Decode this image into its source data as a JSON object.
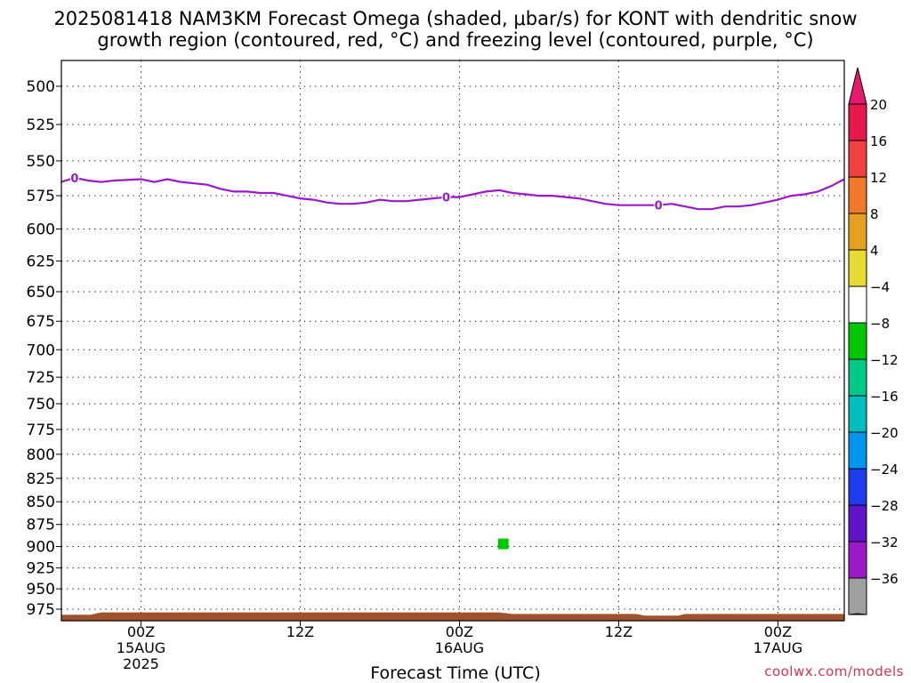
{
  "title_line1": "2025081418 NAM3KM Forecast Omega (shaded, μbar/s) for KONT with dendritic snow",
  "title_line2": "growth region (contoured, red, °C) and freezing level (contoured, purple, °C)",
  "x_axis_title": "Forecast Time (UTC)",
  "credit": "coolwx.com/models",
  "chart_data": {
    "type": "time-height",
    "title": "2025081418 NAM3KM Forecast Omega (shaded, μbar/s) for KONT with dendritic snow growth region (contoured, red, °C) and freezing level (contoured, purple, °C)",
    "xlabel": "Forecast Time (UTC)",
    "ylabel": "",
    "y_axis_inverted": true,
    "y_ticks": [
      500,
      525,
      550,
      575,
      600,
      625,
      650,
      675,
      700,
      725,
      750,
      775,
      800,
      825,
      850,
      875,
      900,
      925,
      950,
      975
    ],
    "x_range_hours": [
      -6,
      53
    ],
    "x_ticks": [
      {
        "hour": 0,
        "lines": [
          "00Z",
          "15AUG",
          "2025"
        ]
      },
      {
        "hour": 12,
        "lines": [
          "12Z"
        ]
      },
      {
        "hour": 24,
        "lines": [
          "00Z",
          "16AUG"
        ]
      },
      {
        "hour": 36,
        "lines": [
          "12Z"
        ]
      },
      {
        "hour": 48,
        "lines": [
          "00Z",
          "17AUG"
        ]
      }
    ],
    "grid": true,
    "freezing_level": {
      "color": "#9b19c8",
      "label": "0",
      "label_hours": [
        -5,
        23,
        39
      ],
      "points": [
        [
          -6,
          565
        ],
        [
          -5,
          562
        ],
        [
          -4,
          564
        ],
        [
          -3,
          565
        ],
        [
          -2,
          564
        ],
        [
          0,
          563
        ],
        [
          1,
          565
        ],
        [
          2,
          563
        ],
        [
          3,
          565
        ],
        [
          5,
          567
        ],
        [
          6,
          570
        ],
        [
          7,
          572
        ],
        [
          8,
          572
        ],
        [
          9,
          573
        ],
        [
          10,
          573
        ],
        [
          11,
          575
        ],
        [
          12,
          577
        ],
        [
          13,
          578
        ],
        [
          14,
          580
        ],
        [
          15,
          581
        ],
        [
          16,
          581
        ],
        [
          17,
          580
        ],
        [
          18,
          578
        ],
        [
          19,
          579
        ],
        [
          20,
          579
        ],
        [
          21,
          578
        ],
        [
          22,
          577
        ],
        [
          23,
          576
        ],
        [
          24,
          576
        ],
        [
          25,
          574
        ],
        [
          26,
          572
        ],
        [
          27,
          571
        ],
        [
          28,
          573
        ],
        [
          29,
          574
        ],
        [
          30,
          575
        ],
        [
          31,
          575
        ],
        [
          32,
          576
        ],
        [
          33,
          577
        ],
        [
          34,
          579
        ],
        [
          35,
          581
        ],
        [
          36,
          582
        ],
        [
          37,
          582
        ],
        [
          38,
          582
        ],
        [
          39,
          582
        ],
        [
          40,
          581
        ],
        [
          41,
          583
        ],
        [
          42,
          585
        ],
        [
          43,
          585
        ],
        [
          44,
          583
        ],
        [
          45,
          583
        ],
        [
          46,
          582
        ],
        [
          47,
          580
        ],
        [
          48,
          578
        ],
        [
          49,
          575
        ],
        [
          50,
          574
        ],
        [
          51,
          572
        ],
        [
          52,
          568
        ],
        [
          53,
          563
        ]
      ]
    },
    "omega_cells": [
      {
        "hour": 27.3,
        "pressure": 897,
        "color": "#00c800",
        "value_range": [
          -8,
          -4
        ]
      }
    ],
    "terrain_color": "#a0522d",
    "terrain": [
      [
        -6,
        982
      ],
      [
        -3.8,
        982
      ],
      [
        -3,
        979
      ],
      [
        11,
        979
      ],
      [
        12.5,
        979
      ],
      [
        27,
        979
      ],
      [
        28,
        981
      ],
      [
        36,
        981
      ],
      [
        37.3,
        981
      ],
      [
        38,
        983
      ],
      [
        40.5,
        983
      ],
      [
        41,
        981
      ],
      [
        53,
        981
      ]
    ],
    "colorbar": {
      "labels": [
        "20",
        "16",
        "12",
        "8",
        "4",
        "−4",
        "−8",
        "−12",
        "−16",
        "−20",
        "−24",
        "−28",
        "−32",
        "−36"
      ],
      "colors": [
        "#e6194b",
        "#f04040",
        "#f07828",
        "#e6a020",
        "#e6dc32",
        "#ffffff",
        "#00c800",
        "#00c887",
        "#00bebe",
        "#0096f0",
        "#1e3cf0",
        "#6414c8",
        "#9b19c8",
        "#a0a0a0"
      ],
      "top_arrow_color": "#e6196e",
      "bottom_arrow_color": "#000000"
    }
  }
}
